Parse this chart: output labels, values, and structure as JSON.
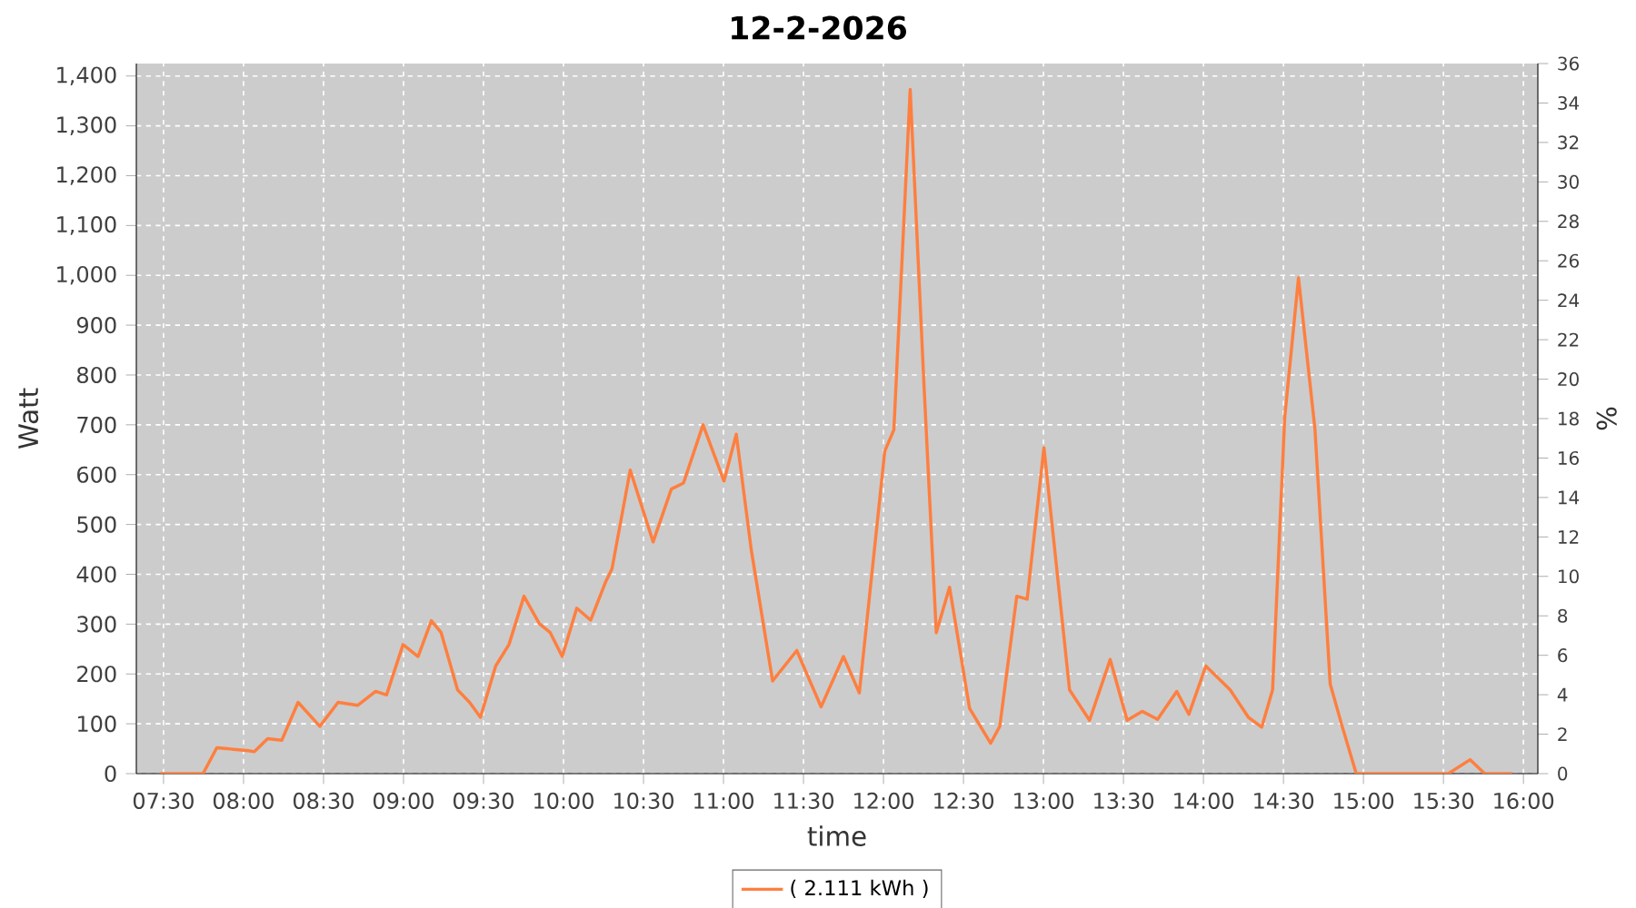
{
  "chart_data": {
    "type": "line",
    "title": "12-2-2026",
    "xlabel": "time",
    "ylabel": "Watt",
    "y2label": "%",
    "x": [
      7.481,
      7.67,
      7.747,
      7.833,
      7.898,
      8.031,
      8.068,
      8.151,
      8.239,
      8.341,
      8.477,
      8.591,
      8.713,
      8.826,
      8.894,
      8.997,
      9.091,
      9.174,
      9.235,
      9.338,
      9.413,
      9.481,
      9.576,
      9.659,
      9.753,
      9.849,
      9.917,
      9.992,
      10.083,
      10.17,
      10.265,
      10.303,
      10.417,
      10.56,
      10.674,
      10.75,
      10.872,
      11.003,
      11.08,
      11.174,
      11.307,
      11.458,
      11.61,
      11.75,
      11.849,
      12.008,
      12.065,
      12.167,
      12.253,
      12.33,
      12.413,
      12.538,
      12.67,
      12.727,
      12.833,
      12.898,
      13.003,
      13.163,
      13.288,
      13.417,
      13.523,
      13.617,
      13.713,
      13.833,
      13.909,
      14.015,
      14.167,
      14.281,
      14.364,
      14.432,
      14.508,
      14.594,
      14.697,
      14.792,
      14.867,
      14.955,
      15.531,
      15.667,
      15.758,
      15.929
    ],
    "series": [
      {
        "name": "( 2.111 kWh )",
        "color": "#ff7f3f",
        "values": [
          0,
          0,
          0,
          52,
          50,
          46,
          44,
          70,
          67,
          143,
          95,
          143,
          137,
          165,
          158,
          259,
          235,
          307,
          283,
          168,
          143,
          113,
          216,
          259,
          356,
          301,
          283,
          235,
          332,
          308,
          386,
          411,
          609,
          465,
          571,
          583,
          700,
          587,
          681,
          448,
          186,
          247,
          134,
          235,
          162,
          647,
          690,
          1373,
          781,
          283,
          374,
          131,
          61,
          95,
          356,
          350,
          654,
          168,
          107,
          229,
          107,
          125,
          109,
          165,
          119,
          216,
          168,
          113,
          93,
          168,
          715,
          995,
          691,
          180,
          95,
          0,
          0,
          28,
          0,
          0
        ]
      }
    ],
    "xlim": [
      7.33,
      16.09
    ],
    "xticks": [
      {
        "value": 7.5,
        "label": "07:30"
      },
      {
        "value": 8,
        "label": "08:00"
      },
      {
        "value": 8.5,
        "label": "08:30"
      },
      {
        "value": 9,
        "label": "09:00"
      },
      {
        "value": 9.5,
        "label": "09:30"
      },
      {
        "value": 10,
        "label": "10:00"
      },
      {
        "value": 10.5,
        "label": "10:30"
      },
      {
        "value": 11,
        "label": "11:00"
      },
      {
        "value": 11.5,
        "label": "11:30"
      },
      {
        "value": 12,
        "label": "12:00"
      },
      {
        "value": 12.5,
        "label": "12:30"
      },
      {
        "value": 13,
        "label": "13:00"
      },
      {
        "value": 13.5,
        "label": "13:30"
      },
      {
        "value": 14,
        "label": "14:00"
      },
      {
        "value": 14.5,
        "label": "14:30"
      },
      {
        "value": 15,
        "label": "15:00"
      },
      {
        "value": 15.5,
        "label": "15:30"
      },
      {
        "value": 16,
        "label": "16:00"
      }
    ],
    "ylim": [
      0,
      1425
    ],
    "yticks": [
      0,
      100,
      200,
      300,
      400,
      500,
      600,
      700,
      800,
      900,
      {
        "value": 1000,
        "label": "1,000"
      },
      {
        "value": 1100,
        "label": "1,100"
      },
      {
        "value": 1200,
        "label": "1,200"
      },
      {
        "value": 1300,
        "label": "1,300"
      },
      {
        "value": 1400,
        "label": "1,400"
      }
    ],
    "y2lim": [
      0,
      36
    ],
    "y2ticks": [
      0,
      2,
      4,
      6,
      8,
      10,
      12,
      14,
      16,
      18,
      20,
      22,
      24,
      26,
      28,
      30,
      32,
      34,
      36
    ],
    "grid": true,
    "legend": "bottom",
    "line_style": "solid"
  }
}
